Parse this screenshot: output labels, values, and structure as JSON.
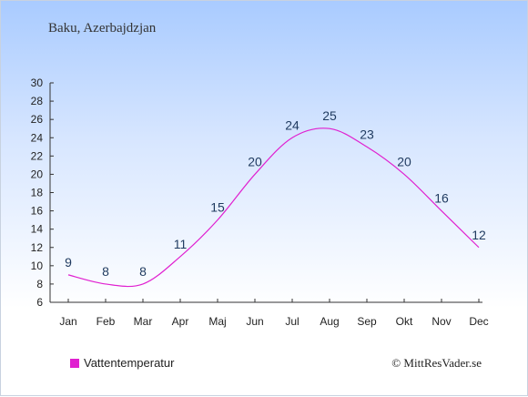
{
  "location": "Baku, Azerbajdzjan",
  "copyright": "© MittResVader.se",
  "colors": {
    "line": "#e020d0",
    "axis": "#333333",
    "label": "#1f3a5f"
  },
  "chart_data": {
    "type": "line",
    "categories": [
      "Jan",
      "Feb",
      "Mar",
      "Apr",
      "Maj",
      "Jun",
      "Jul",
      "Aug",
      "Sep",
      "Okt",
      "Nov",
      "Dec"
    ],
    "series": [
      {
        "name": "Vattentemperatur",
        "values": [
          9,
          8,
          8,
          11,
          15,
          20,
          24,
          25,
          23,
          20,
          16,
          12
        ]
      }
    ],
    "ylim": [
      6,
      30
    ],
    "yticks": [
      6,
      8,
      10,
      12,
      14,
      16,
      18,
      20,
      22,
      24,
      26,
      28,
      30
    ],
    "grid": false,
    "legend": "bottom-left"
  }
}
